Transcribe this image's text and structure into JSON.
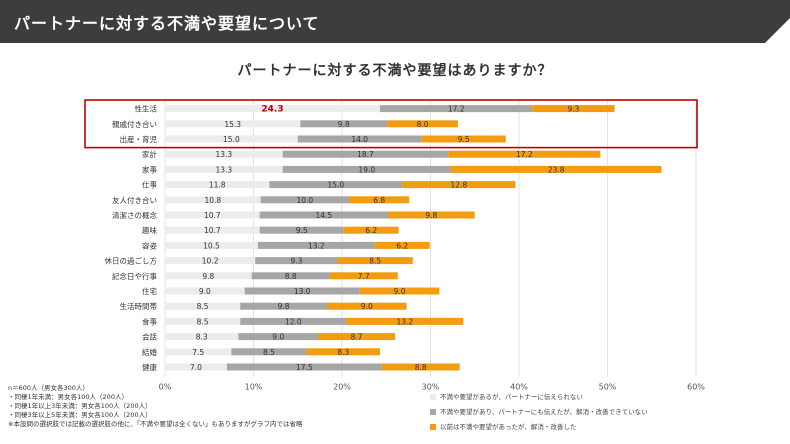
{
  "header": {
    "title": "パートナーに対する不満や要望について"
  },
  "chart_data": {
    "type": "bar",
    "orientation": "horizontal",
    "stacked": true,
    "title": "パートナーに対する不満や要望はありますか？",
    "categories": [
      "性生活",
      "親戚付き合い",
      "出産・育児",
      "家計",
      "家事",
      "仕事",
      "友人付き合い",
      "清潔さの概念",
      "趣味",
      "容姿",
      "休日の過ごし方",
      "記念日や行事",
      "住宅",
      "生活時間帯",
      "食事",
      "会話",
      "結婚",
      "健康"
    ],
    "series": [
      {
        "name": "不満や要望があるが、パートナーに伝えられない",
        "color": "#ececec",
        "values": [
          24.3,
          15.3,
          15.0,
          13.3,
          13.3,
          11.8,
          10.8,
          10.7,
          10.7,
          10.5,
          10.2,
          9.8,
          9.0,
          8.5,
          8.5,
          8.3,
          7.5,
          7.0
        ],
        "labels": [
          "24.3",
          "15.3",
          "15.0",
          "13.3",
          "13.3",
          "11.8",
          "10.8",
          "10.7",
          "10.7",
          "10.5",
          "10.2",
          "9.8",
          "9.0",
          "8.5",
          "8.5",
          "8.3",
          "7.5",
          "7.0"
        ]
      },
      {
        "name": "不満や要望があり、パートナーにも伝えたが、解消・改善できていない",
        "color": "#a6a6a6",
        "values": [
          17.2,
          9.8,
          14.0,
          18.7,
          19.0,
          15.0,
          10.0,
          14.5,
          9.5,
          13.2,
          9.3,
          8.8,
          13.0,
          9.8,
          12.0,
          9.0,
          8.5,
          17.5
        ],
        "labels": [
          "17.2",
          "9.8",
          "14.0",
          "18.7",
          "19.0",
          "15.0",
          "10.0",
          "14.5",
          "9.5",
          "13.2",
          "9.3",
          "8.8",
          "13.0",
          "9.8",
          "12.0",
          "9.0",
          "8.5",
          "17.5"
        ]
      },
      {
        "name": "以前は不満や要望があったが、解消・改善した",
        "color": "#f39c12",
        "values": [
          9.3,
          8.0,
          9.5,
          17.2,
          23.8,
          12.8,
          6.8,
          9.8,
          6.2,
          6.2,
          8.5,
          7.7,
          9.0,
          9.0,
          13.2,
          8.7,
          8.3,
          8.8
        ],
        "labels": [
          "9.3",
          "8.0",
          "9.5",
          "17.2",
          "23.8",
          "12.8",
          "6.8",
          "9.8",
          "6.2",
          "6.2",
          "8.5",
          "7.7",
          "9.0",
          "9.0",
          "13.2",
          "8.7",
          "8.3",
          "8.8"
        ]
      }
    ],
    "x_ticks": [
      "0%",
      "10%",
      "20%",
      "30%",
      "40%",
      "50%",
      "60%"
    ],
    "xlim": [
      0,
      60
    ],
    "grid": true,
    "legend_position": "bottom-right",
    "highlight": {
      "categories": [
        "性生活",
        "親戚付き合い",
        "出産・育児"
      ],
      "color": "#c00000",
      "value_emphasis_color": "#c00000"
    }
  },
  "footnotes": [
    "n＝600人（男女各300人）",
    "・同棲1年未満：男女各100人（200人）",
    "・同棲1年以上3年未満：男女各100人（200人）",
    "・同棲3年以上5年未満：男女各100人（200人）",
    "※本設問の選択肢では記載の選択肢の他に、「不満や要望は全くない」もありますがグラフ内では省略"
  ]
}
